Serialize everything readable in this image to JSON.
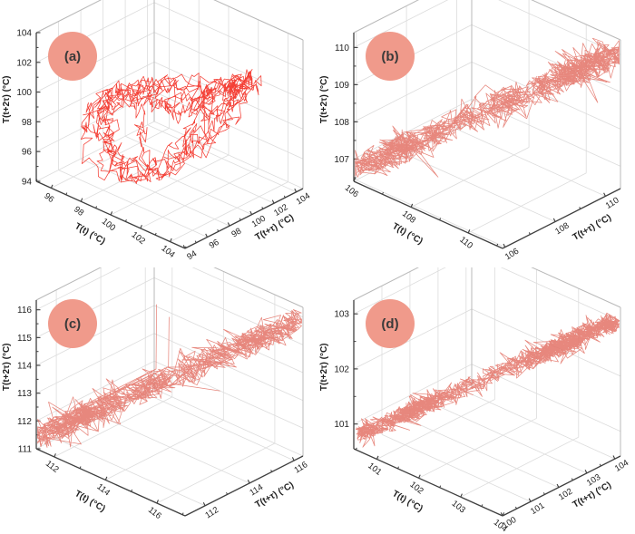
{
  "figure": {
    "background": "#ffffff",
    "badge_color": "#f09a8b",
    "badge_text_color": "#3a3a3a",
    "axis_color": "#3f3f3f",
    "grid_color": "#dcdcdc",
    "wall_edge_color": "#b9b9b9",
    "tick_text_color": "#1f1f1f"
  },
  "chart_data": [
    {
      "id": "a",
      "badge": "(a)",
      "type": "line",
      "subtype": "3d-phase-space-trajectory",
      "pattern": "chaotic-loop",
      "line_color": "#f2251a",
      "seed": 11,
      "points": 950,
      "spread": 0.05,
      "x_axis": {
        "label": "T(t) (°C)",
        "ticks": [
          96,
          98,
          100,
          102,
          104
        ],
        "range": [
          95,
          105
        ]
      },
      "y_axis": {
        "label": "T(t+τ) (°C)",
        "ticks": [
          94,
          96,
          98,
          100,
          102,
          104
        ],
        "range": [
          94,
          104.6
        ]
      },
      "z_axis": {
        "label": "T(t+2τ) (°C)",
        "ticks": [
          94,
          96,
          98,
          100,
          102,
          104
        ],
        "range": [
          94,
          104
        ]
      }
    },
    {
      "id": "b",
      "badge": "(b)",
      "type": "line",
      "subtype": "3d-phase-space-trajectory",
      "pattern": "noisy-diagonal-band",
      "line_color": "#e4766b",
      "seed": 23,
      "points": 1100,
      "spread": 0.075,
      "x_axis": {
        "label": "T(t) (°C)",
        "ticks": [
          106,
          108,
          110
        ],
        "range": [
          106,
          111.2
        ]
      },
      "y_axis": {
        "label": "T(t+τ) (°C)",
        "ticks": [
          106,
          108,
          110
        ],
        "range": [
          105.9,
          110.6
        ]
      },
      "z_axis": {
        "label": "T(t+2τ) (°C)",
        "ticks": [
          107,
          108,
          109,
          110
        ],
        "range": [
          106.4,
          110.4
        ]
      }
    },
    {
      "id": "c",
      "badge": "(c)",
      "type": "line",
      "subtype": "3d-phase-space-trajectory",
      "pattern": "noisy-diagonal-band",
      "line_color": "#e4766b",
      "seed": 37,
      "points": 1100,
      "spread": 0.07,
      "spikes": [
        {
          "at": 0.5,
          "from": [
            0.44,
            0.46,
            0.55
          ],
          "to": [
            0.46,
            0.44,
            1.0
          ]
        },
        {
          "at": 0.54,
          "from": [
            0.5,
            0.49,
            0.58
          ],
          "to": [
            0.52,
            0.47,
            0.93
          ]
        },
        {
          "at": 0.6,
          "from": [
            0.52,
            0.5,
            0.47
          ],
          "to": [
            0.56,
            0.85,
            0.3
          ]
        }
      ],
      "x_axis": {
        "label": "T(t) (°C)",
        "ticks": [
          112,
          114,
          116
        ],
        "range": [
          111.3,
          117.1
        ]
      },
      "y_axis": {
        "label": "T(t+τ) (°C)",
        "ticks": [
          112,
          114,
          116
        ],
        "range": [
          111.1,
          116.4
        ]
      },
      "z_axis": {
        "label": "T(t+2τ) (°C)",
        "ticks": [
          111,
          112,
          113,
          114,
          115,
          116
        ],
        "range": [
          111,
          116.35
        ]
      }
    },
    {
      "id": "d",
      "badge": "(d)",
      "type": "line",
      "subtype": "3d-phase-space-trajectory",
      "pattern": "tight-diagonal-band",
      "line_color": "#e4766b",
      "seed": 53,
      "points": 1600,
      "spread": 0.05,
      "x_axis": {
        "label": "T(t) (°C)",
        "ticks": [
          101,
          102,
          103,
          104
        ],
        "range": [
          100.45,
          104.0
        ]
      },
      "y_axis": {
        "label": "T(t+τ) (°C)",
        "ticks": [
          100,
          101,
          102,
          103,
          104
        ],
        "range": [
          100,
          104.2
        ]
      },
      "z_axis": {
        "label": "T(t+2τ) (°C)",
        "ticks": [
          101,
          102,
          103
        ],
        "range": [
          100.55,
          103.25
        ]
      }
    }
  ]
}
